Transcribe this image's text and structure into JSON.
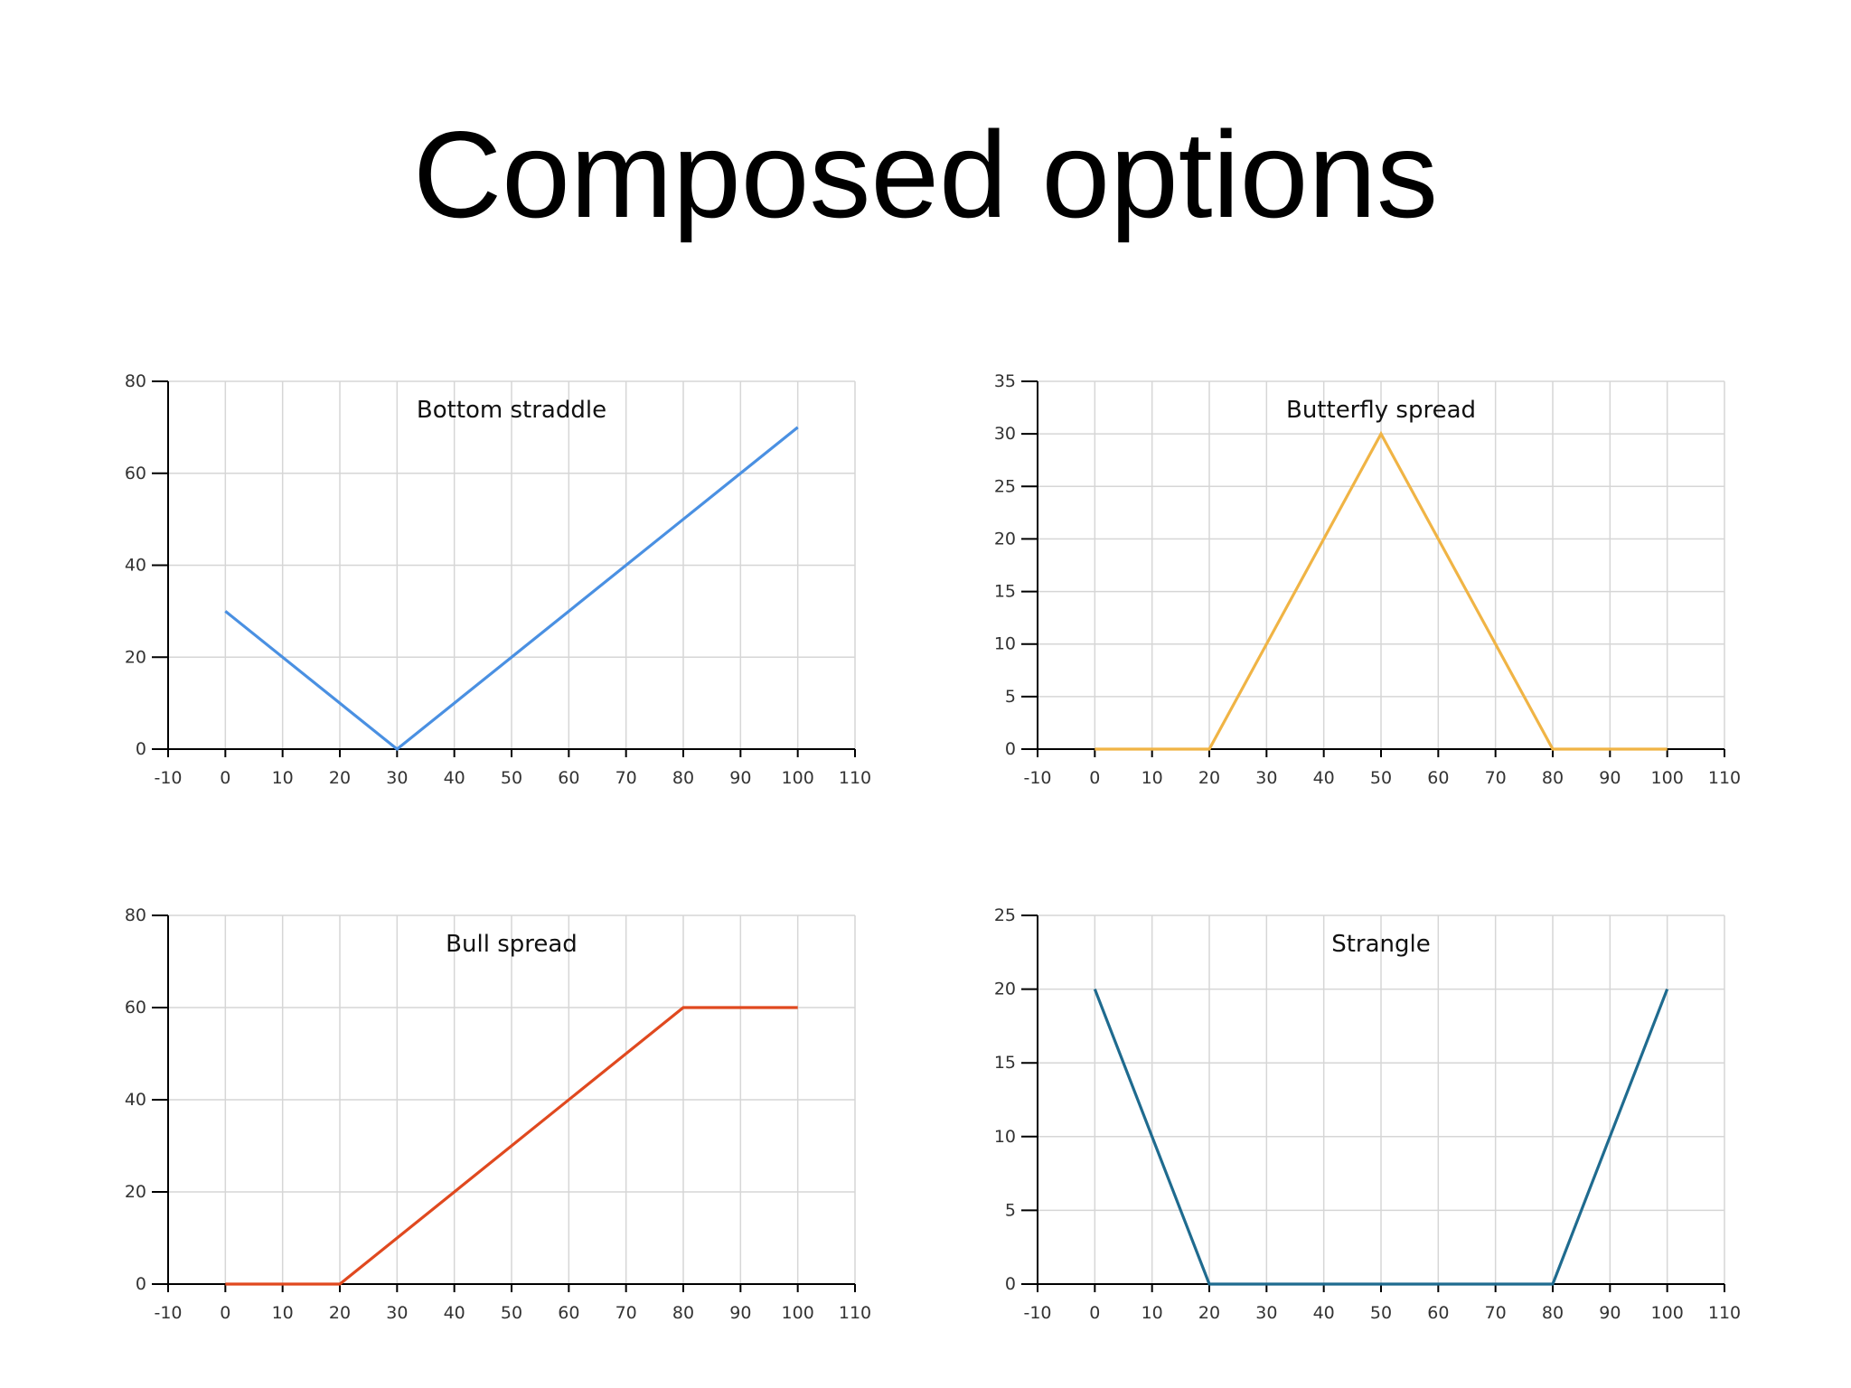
{
  "slide": {
    "title": "Composed options"
  },
  "chart_data": [
    {
      "type": "line",
      "title": "Bottom straddle",
      "xlim": [
        -10,
        110
      ],
      "ylim": [
        0,
        80
      ],
      "xticks": [
        -10,
        0,
        10,
        20,
        30,
        40,
        50,
        60,
        70,
        80,
        90,
        100,
        110
      ],
      "yticks": [
        0,
        20,
        40,
        60,
        80
      ],
      "grid": true,
      "series": [
        {
          "color": "#4a90e2",
          "points": [
            [
              0,
              30
            ],
            [
              30,
              0
            ],
            [
              100,
              70
            ]
          ]
        }
      ]
    },
    {
      "type": "line",
      "title": "Butterfly spread",
      "xlim": [
        -10,
        110
      ],
      "ylim": [
        0,
        35
      ],
      "xticks": [
        -10,
        0,
        10,
        20,
        30,
        40,
        50,
        60,
        70,
        80,
        90,
        100,
        110
      ],
      "yticks": [
        0,
        5,
        10,
        15,
        20,
        25,
        30,
        35
      ],
      "grid": true,
      "series": [
        {
          "color": "#f0b445",
          "points": [
            [
              0,
              0
            ],
            [
              20,
              0
            ],
            [
              50,
              30
            ],
            [
              80,
              0
            ],
            [
              100,
              0
            ]
          ]
        }
      ]
    },
    {
      "type": "line",
      "title": "Bull spread",
      "xlim": [
        -10,
        110
      ],
      "ylim": [
        0,
        80
      ],
      "xticks": [
        -10,
        0,
        10,
        20,
        30,
        40,
        50,
        60,
        70,
        80,
        90,
        100,
        110
      ],
      "yticks": [
        0,
        20,
        40,
        60,
        80
      ],
      "grid": true,
      "series": [
        {
          "color": "#e0491f",
          "points": [
            [
              0,
              0
            ],
            [
              20,
              0
            ],
            [
              80,
              60
            ],
            [
              100,
              60
            ]
          ]
        }
      ]
    },
    {
      "type": "line",
      "title": "Strangle",
      "xlim": [
        -10,
        110
      ],
      "ylim": [
        0,
        25
      ],
      "xticks": [
        -10,
        0,
        10,
        20,
        30,
        40,
        50,
        60,
        70,
        80,
        90,
        100,
        110
      ],
      "yticks": [
        0,
        5,
        10,
        15,
        20,
        25
      ],
      "grid": true,
      "series": [
        {
          "color": "#1f6b8f",
          "points": [
            [
              0,
              20
            ],
            [
              20,
              0
            ],
            [
              80,
              0
            ],
            [
              100,
              20
            ]
          ]
        }
      ]
    }
  ]
}
